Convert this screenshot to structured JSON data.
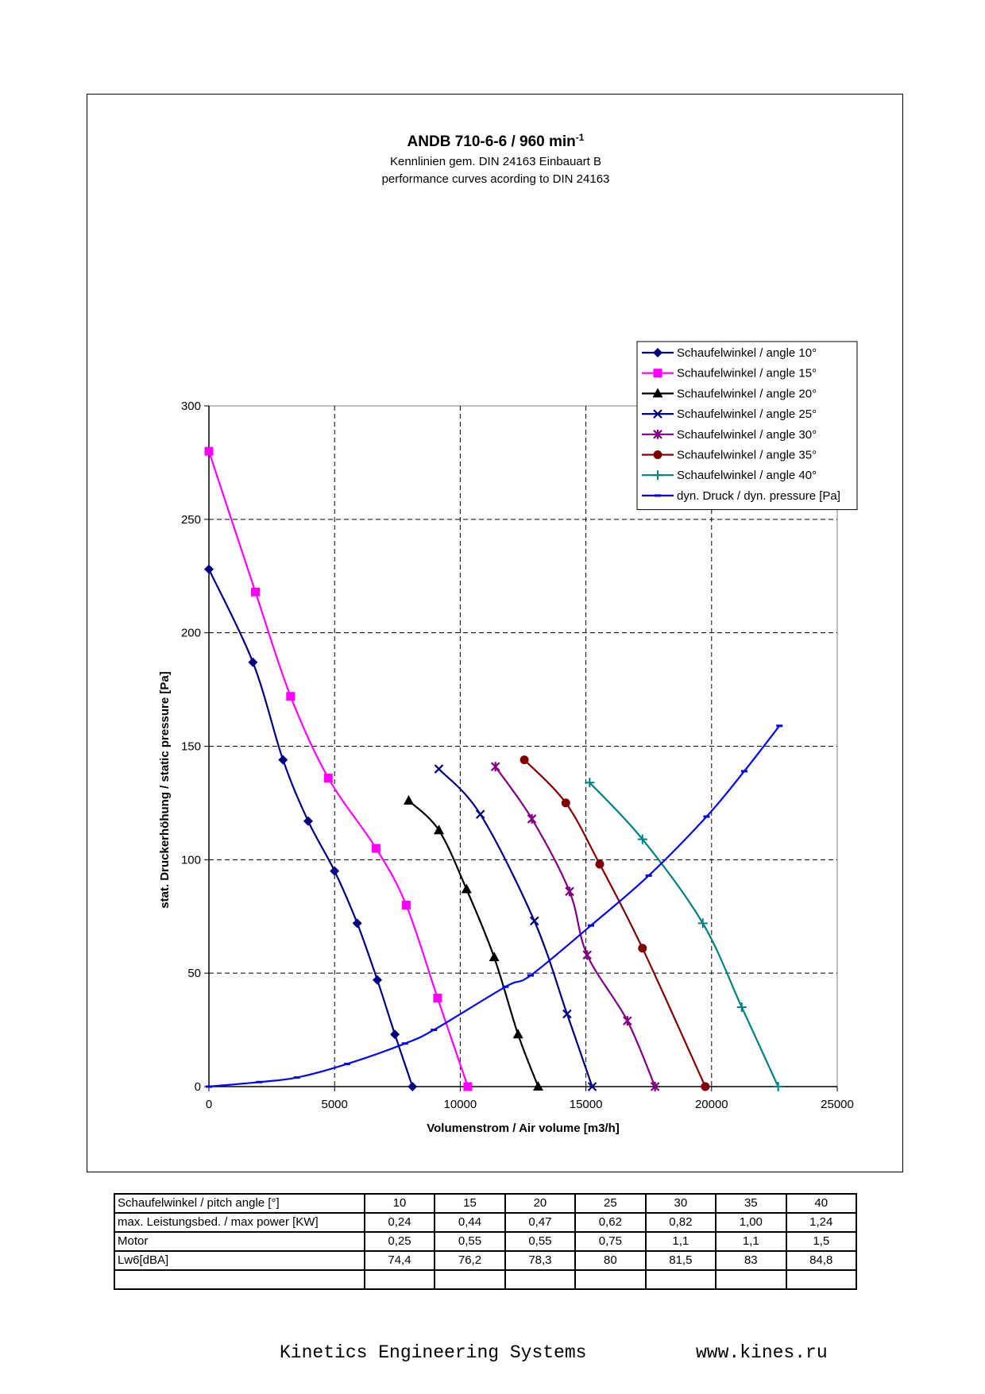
{
  "chart_data": {
    "type": "line",
    "title": "ANDB 710-6-6 / 960 min",
    "title_superscript": "-1",
    "subtitle_lines": [
      "Kennlinien gem. DIN 24163 Einbauart B",
      "performance curves acording to DIN 24163"
    ],
    "xlabel": "Volumenstrom / Air volume [m3/h]",
    "ylabel": "stat. Druckerhöhung / static pressure [Pa]",
    "xlim": [
      0,
      25000
    ],
    "ylim": [
      0,
      300
    ],
    "xticks": [
      0,
      5000,
      10000,
      15000,
      20000,
      25000
    ],
    "xtick_labels": [
      "0",
      "5000",
      "10000",
      "15000",
      "20000",
      "25000"
    ],
    "yticks": [
      0,
      50,
      100,
      150,
      200,
      250,
      300
    ],
    "ytick_labels": [
      "0",
      "50",
      "100",
      "150",
      "200",
      "250",
      "300"
    ],
    "grid": true,
    "legend_position": "top-right",
    "series": [
      {
        "name": "Schaufelwinkel / angle 10°",
        "color": "#000080",
        "marker": "diamond",
        "points": [
          [
            0,
            228
          ],
          [
            1750,
            187
          ],
          [
            2950,
            144
          ],
          [
            3950,
            117
          ],
          [
            5000,
            95
          ],
          [
            5900,
            72
          ],
          [
            6700,
            47
          ],
          [
            7400,
            23
          ],
          [
            8100,
            0
          ]
        ]
      },
      {
        "name": "Schaufelwinkel / angle 15°",
        "color": "#ff00ff",
        "marker": "square",
        "points": [
          [
            0,
            280
          ],
          [
            1850,
            218
          ],
          [
            3250,
            172
          ],
          [
            4750,
            136
          ],
          [
            6650,
            105
          ],
          [
            7850,
            80
          ],
          [
            9100,
            39
          ],
          [
            10300,
            0
          ]
        ]
      },
      {
        "name": "Schaufelwinkel / angle 20°",
        "color": "#000000",
        "marker": "triangle",
        "points": [
          [
            7950,
            126
          ],
          [
            9150,
            113
          ],
          [
            10250,
            87
          ],
          [
            11350,
            57
          ],
          [
            12300,
            23
          ],
          [
            13100,
            0
          ]
        ]
      },
      {
        "name": "Schaufelwinkel / angle 25°",
        "color": "#000080",
        "marker": "x",
        "points": [
          [
            9150,
            140
          ],
          [
            10800,
            120
          ],
          [
            12950,
            73
          ],
          [
            14250,
            32
          ],
          [
            15250,
            0
          ]
        ]
      },
      {
        "name": "Schaufelwinkel / angle 30°",
        "color": "#800080",
        "marker": "star",
        "points": [
          [
            11400,
            141
          ],
          [
            12850,
            118
          ],
          [
            14350,
            86
          ],
          [
            15050,
            58
          ],
          [
            16650,
            29
          ],
          [
            17750,
            0
          ]
        ]
      },
      {
        "name": "Schaufelwinkel / angle 35°",
        "color": "#800000",
        "marker": "circle",
        "points": [
          [
            12550,
            144
          ],
          [
            14200,
            125
          ],
          [
            15550,
            98
          ],
          [
            17250,
            61
          ],
          [
            19750,
            0
          ]
        ]
      },
      {
        "name": "Schaufelwinkel / angle 40°",
        "color": "#008080",
        "marker": "plus",
        "points": [
          [
            15150,
            134
          ],
          [
            17250,
            109
          ],
          [
            19650,
            72
          ],
          [
            21200,
            35
          ],
          [
            22650,
            0
          ]
        ]
      },
      {
        "name": "dyn. Druck / dyn. pressure [Pa]",
        "color": "#0000ff",
        "marker": "dash",
        "points": [
          [
            0,
            0
          ],
          [
            2000,
            2
          ],
          [
            3500,
            4
          ],
          [
            5500,
            10
          ],
          [
            7800,
            19
          ],
          [
            8950,
            25
          ],
          [
            11800,
            44
          ],
          [
            12800,
            49
          ],
          [
            15200,
            71
          ],
          [
            17500,
            93
          ],
          [
            19800,
            119
          ],
          [
            21300,
            139
          ],
          [
            22700,
            159
          ]
        ]
      }
    ]
  },
  "table": {
    "rows": [
      [
        "Schaufelwinkel / pitch angle [°]",
        "10",
        "15",
        "20",
        "25",
        "30",
        "35",
        "40"
      ],
      [
        "max. Leistungsbed. / max power [KW]",
        "0,24",
        "0,44",
        "0,47",
        "0,62",
        "0,82",
        "1,00",
        "1,24"
      ],
      [
        "Motor",
        "0,25",
        "0,55",
        "0,55",
        "0,75",
        "1,1",
        "1,1",
        "1,5"
      ],
      [
        "Lw6[dBA]",
        "74,4",
        "76,2",
        "78,3",
        "80",
        "81,5",
        "83",
        "84,8"
      ],
      [
        "",
        "",
        "",
        "",
        "",
        "",
        "",
        ""
      ]
    ]
  },
  "footer": {
    "company": "Kinetics Engineering Systems",
    "website": "www.kines.ru"
  }
}
